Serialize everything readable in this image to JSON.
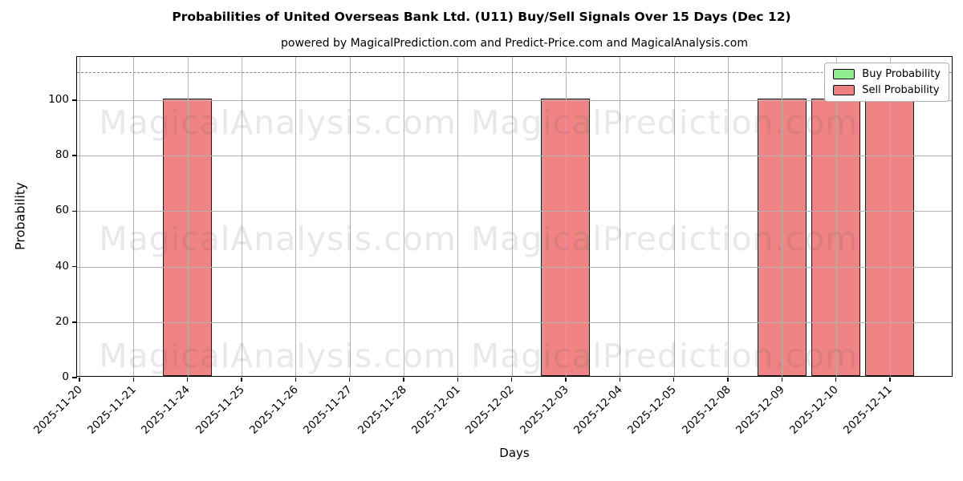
{
  "title": "Probabilities of United Overseas Bank Ltd. (U11) Buy/Sell Signals Over 15 Days (Dec 12)",
  "subtitle": "powered by MagicalPrediction.com and Predict-Price.com and MagicalAnalysis.com",
  "watermarks": {
    "left": "MagicalAnalysis.com",
    "right": "MagicalPrediction.com"
  },
  "legend": {
    "buy": {
      "label": "Buy Probability",
      "color": "#90ee90"
    },
    "sell": {
      "label": "Sell Probability",
      "color": "#f08080"
    }
  },
  "axes": {
    "xlabel": "Days",
    "ylabel": "Probability"
  },
  "chart_data": {
    "type": "bar",
    "title": "Probabilities of United Overseas Bank Ltd. (U11) Buy/Sell Signals Over 15 Days (Dec 12)",
    "xlabel": "Days",
    "ylabel": "Probability",
    "categories": [
      "2025-11-20",
      "2025-11-21",
      "2025-11-24",
      "2025-11-25",
      "2025-11-26",
      "2025-11-27",
      "2025-11-28",
      "2025-12-01",
      "2025-12-02",
      "2025-12-03",
      "2025-12-04",
      "2025-12-05",
      "2025-12-08",
      "2025-12-09",
      "2025-12-10",
      "2025-12-11"
    ],
    "series": [
      {
        "name": "Buy Probability",
        "color": "#90ee90",
        "values": [
          0,
          0,
          0,
          0,
          0,
          0,
          0,
          0,
          0,
          0,
          0,
          0,
          0,
          0,
          0,
          0
        ]
      },
      {
        "name": "Sell Probability",
        "color": "#f08080",
        "values": [
          0,
          0,
          100,
          0,
          0,
          0,
          0,
          0,
          0,
          100,
          0,
          0,
          0,
          100,
          100,
          100
        ]
      }
    ],
    "ylim": [
      0,
      115.6
    ],
    "yticks": [
      0,
      20,
      40,
      60,
      80,
      100
    ],
    "dashed_line_y": 110,
    "grid": true,
    "legend_position": "upper right",
    "bar_edge_color": "#000000",
    "grid_color": "#b2b2b2"
  }
}
